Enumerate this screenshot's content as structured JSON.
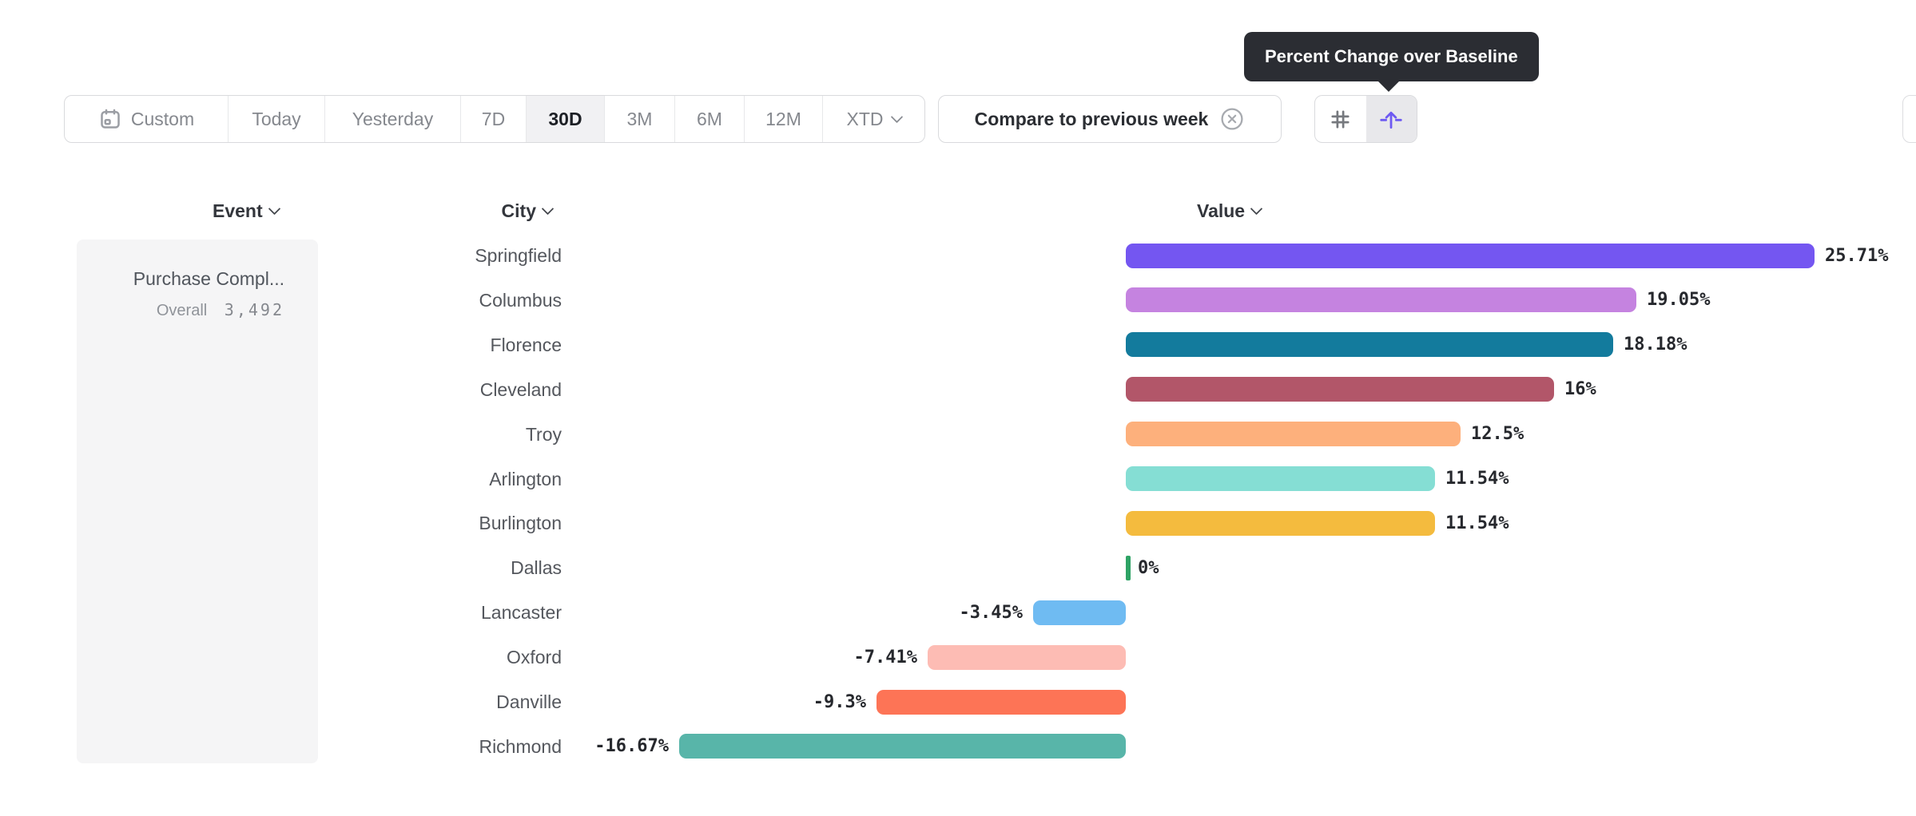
{
  "tooltip": {
    "text": "Percent Change over Baseline"
  },
  "toolbar": {
    "date_ranges": [
      {
        "label": "Custom",
        "icon": "calendar-icon"
      },
      {
        "label": "Today"
      },
      {
        "label": "Yesterday"
      },
      {
        "label": "7D"
      },
      {
        "label": "30D"
      },
      {
        "label": "3M"
      },
      {
        "label": "6M"
      },
      {
        "label": "12M"
      },
      {
        "label": "XTD",
        "icon": "chevron-down-icon"
      }
    ],
    "selected_range": "30D",
    "compare": {
      "label": "Compare to previous week",
      "icon": "close-circle-icon"
    },
    "view_buttons": [
      {
        "name": "grid-hash-icon",
        "selected": false
      },
      {
        "name": "percent-change-baseline-icon",
        "selected": true
      }
    ]
  },
  "columns": {
    "event": "Event",
    "city": "City",
    "value": "Value"
  },
  "event_panel": {
    "event_name": "Purchase Compl...",
    "metric_label": "Overall",
    "metric_value": "3,492"
  },
  "chart_data": {
    "type": "bar",
    "orientation": "horizontal",
    "title": "Percent Change over Baseline",
    "unit": "%",
    "categories": [
      "Springfield",
      "Columbus",
      "Florence",
      "Cleveland",
      "Troy",
      "Arlington",
      "Burlington",
      "Dallas",
      "Lancaster",
      "Oxford",
      "Danville",
      "Richmond"
    ],
    "values": [
      25.71,
      19.05,
      18.18,
      16,
      12.5,
      11.54,
      11.54,
      0,
      -3.45,
      -7.41,
      -9.3,
      -16.67
    ],
    "labels": [
      "25.71%",
      "19.05%",
      "18.18%",
      "16%",
      "12.5%",
      "11.54%",
      "11.54%",
      "0%",
      "-3.45%",
      "-7.41%",
      "-9.3%",
      "-16.67%"
    ],
    "colors": [
      "#7456f1",
      "#c583e0",
      "#137b9d",
      "#b25669",
      "#fdb07c",
      "#85ded4",
      "#f4bb3e",
      "#2ea365",
      "#6fbbf2",
      "#fdbcb4",
      "#fd7456",
      "#58b5a9"
    ],
    "baseline": 0,
    "accent_color": "#6e5af2",
    "grid": false,
    "legend": false
  }
}
